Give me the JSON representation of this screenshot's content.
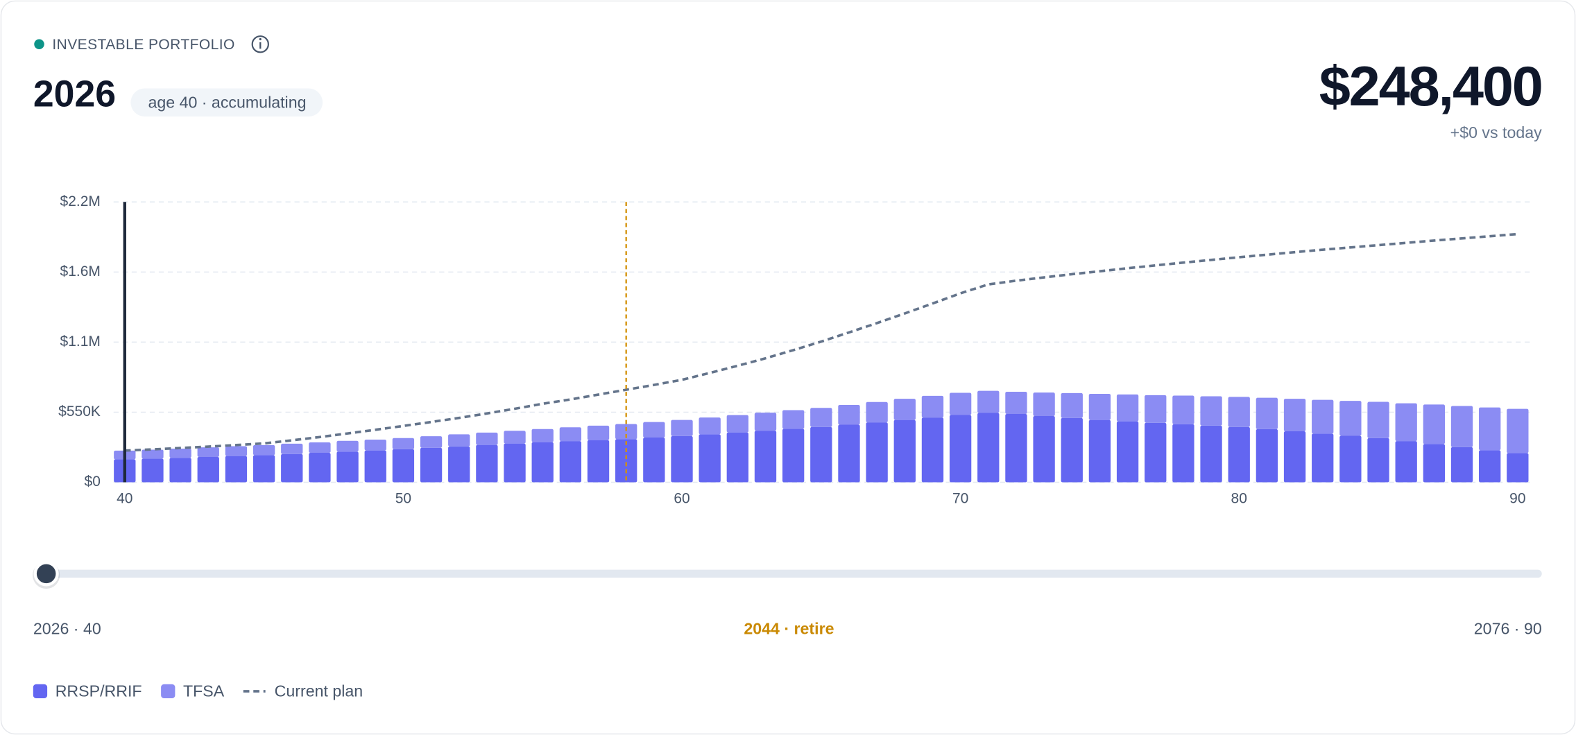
{
  "header": {
    "label": "INVESTABLE PORTFOLIO",
    "year": "2026",
    "status": "age 40 · accumulating",
    "total": "$248,400",
    "change": "+$0 vs today"
  },
  "chart_data": {
    "type": "bar",
    "stacked": true,
    "x": [
      40,
      41,
      42,
      43,
      44,
      45,
      46,
      47,
      48,
      49,
      50,
      51,
      52,
      53,
      54,
      55,
      56,
      57,
      58,
      59,
      60,
      61,
      62,
      63,
      64,
      65,
      66,
      67,
      68,
      69,
      70,
      71,
      72,
      73,
      74,
      75,
      76,
      77,
      78,
      79,
      80,
      81,
      82,
      83,
      84,
      85,
      86,
      87,
      88,
      89,
      90
    ],
    "series": [
      {
        "name": "RRSP/RRIF",
        "color": "#6366f1",
        "values": [
          180000,
          186000,
          192000,
          199000,
          206000,
          213000,
          222000,
          231000,
          241000,
          250000,
          260000,
          271000,
          282000,
          293000,
          304000,
          315000,
          323000,
          331000,
          339000,
          351000,
          363000,
          377000,
          391000,
          405000,
          420000,
          434000,
          452000,
          470000,
          489000,
          508000,
          528000,
          544000,
          536000,
          520000,
          505000,
          489000,
          478000,
          467000,
          456000,
          445000,
          434000,
          417000,
          400000,
          382000,
          365000,
          347000,
          323000,
          300000,
          276000,
          252000,
          229000
        ]
      },
      {
        "name": "TFSA",
        "color": "#8b8cf3",
        "values": [
          68400,
          70000,
          72000,
          75000,
          77000,
          79000,
          81000,
          82000,
          84000,
          85000,
          87000,
          90000,
          94000,
          97000,
          100000,
          103000,
          108000,
          113000,
          118000,
          122000,
          126000,
          131000,
          136000,
          141000,
          146000,
          150000,
          155000,
          160000,
          166000,
          170000,
          174000,
          174000,
          174000,
          184000,
          195000,
          205000,
          211000,
          217000,
          224000,
          230000,
          236000,
          246000,
          255000,
          265000,
          274000,
          284000,
          297000,
          310000,
          323000,
          335000,
          347000
        ]
      },
      {
        "name": "Current plan",
        "type": "line",
        "color": "#64748b",
        "values": [
          248400,
          258000,
          269000,
          280000,
          292000,
          305000,
          329000,
          355000,
          383000,
          412000,
          442000,
          473000,
          505000,
          540000,
          577000,
          616000,
          650000,
          688000,
          726000,
          764000,
          804000,
          858000,
          914000,
          973000,
          1037000,
          1104000,
          1176000,
          1249000,
          1325000,
          1403000,
          1483000,
          1553000,
          1582000,
          1608000,
          1633000,
          1656000,
          1680000,
          1702000,
          1724000,
          1745000,
          1766000,
          1786000,
          1806000,
          1825000,
          1843000,
          1861000,
          1879000,
          1897000,
          1914000,
          1931000,
          1948000
        ]
      }
    ],
    "xlim": [
      39.6,
      90.4
    ],
    "xticks": [
      40,
      50,
      60,
      70,
      80,
      90
    ],
    "ylim": [
      0,
      2200000
    ],
    "yticks": [
      {
        "value": 0,
        "label": "$0"
      },
      {
        "value": 550000,
        "label": "$550K"
      },
      {
        "value": 1100000,
        "label": "$1.1M"
      },
      {
        "value": 1650000,
        "label": "$1.6M"
      },
      {
        "value": 2200000,
        "label": "$2.2M"
      }
    ],
    "grid": true,
    "current_age": 40,
    "current_color": "#1e293b",
    "retire_age": 58,
    "retire_color": "#d4920a"
  },
  "slider": {
    "labels": [
      "2026 · 40",
      "2044 · retire",
      "2076 · 90"
    ]
  }
}
